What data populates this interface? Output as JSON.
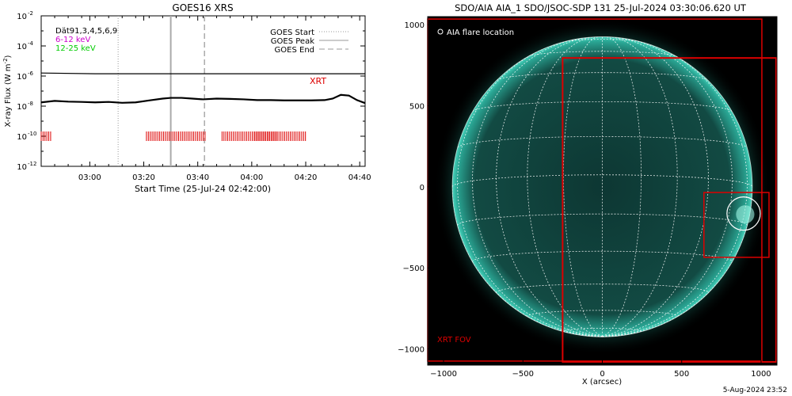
{
  "chart_data": [
    {
      "type": "line",
      "title": "GOES16 XRS",
      "xlabel": "Start Time (25-Jul-24 02:42:00)",
      "ylabel": "X-ray Flux (W m",
      "ylabel_sup": "-2",
      "ylabel_close": ")",
      "x_unit": "minutes",
      "xlim": [
        0,
        120
      ],
      "ylim_log10": [
        -12,
        -2
      ],
      "y_scale": "log",
      "y_ticks": [
        {
          "v": -2,
          "base": "10",
          "exp": "-2"
        },
        {
          "v": -4,
          "base": "10",
          "exp": "-4"
        },
        {
          "v": -6,
          "base": "10",
          "exp": "-6"
        },
        {
          "v": -8,
          "base": "10",
          "exp": "-8"
        },
        {
          "v": -10,
          "base": "10",
          "exp": "-10"
        },
        {
          "v": -12,
          "base": "10",
          "exp": "-12"
        }
      ],
      "x_ticks": [
        {
          "v": 18,
          "label": "03:00"
        },
        {
          "v": 38,
          "label": "03:20"
        },
        {
          "v": 58,
          "label": "03:40"
        },
        {
          "v": 78,
          "label": "04:00"
        },
        {
          "v": 98,
          "label": "04:20"
        },
        {
          "v": 118,
          "label": "04:40"
        }
      ],
      "legend_left": [
        {
          "text": "Dät91,3,4,5,6,9",
          "color": "#000000"
        },
        {
          "text": "6-12 keV",
          "color": "#cc00cc"
        },
        {
          "text": "12-25 keV",
          "color": "#00cc00"
        }
      ],
      "legend_right": [
        {
          "text": "GOES Start",
          "style": "dotted"
        },
        {
          "text": "GOES Peak",
          "style": "solid"
        },
        {
          "text": "GOES End",
          "style": "dashed"
        }
      ],
      "xrt_label": "XRT",
      "markers": {
        "goes_start": 28.5,
        "goes_peak": 48,
        "goes_end": 60.5
      },
      "series": [
        {
          "name": "",
          "color": "#000000",
          "x": [
            0,
            20,
            40,
            60,
            80,
            100,
            120
          ],
          "y_log10": [
            -5.8,
            -5.85,
            -5.85,
            -5.85,
            -5.85,
            -5.85,
            -5.85
          ]
        },
        {
          "name": "",
          "color": "#000000",
          "x": [
            0,
            5,
            10,
            15,
            20,
            25,
            30,
            35,
            40,
            45,
            48,
            52,
            56,
            60,
            65,
            70,
            75,
            80,
            85,
            90,
            95,
            100,
            105,
            108,
            111,
            114,
            117,
            120
          ],
          "y_log10": [
            -7.75,
            -7.65,
            -7.7,
            -7.72,
            -7.75,
            -7.72,
            -7.78,
            -7.75,
            -7.62,
            -7.5,
            -7.45,
            -7.45,
            -7.5,
            -7.55,
            -7.5,
            -7.52,
            -7.55,
            -7.6,
            -7.6,
            -7.62,
            -7.62,
            -7.62,
            -7.6,
            -7.5,
            -7.25,
            -7.3,
            -7.6,
            -7.8
          ]
        }
      ],
      "xrt_segments": [
        [
          0,
          4
        ],
        [
          39,
          61
        ],
        [
          67,
          88
        ],
        [
          79,
          98
        ]
      ]
    },
    {
      "type": "image",
      "title": "SDO/AIA AIA_1 SDO/JSOC-SDP 131 25-Jul-2024 03:30:06.620 UT",
      "xlabel": "X (arcsec)",
      "xlim": [
        -1100,
        1100
      ],
      "ylim": [
        -1100,
        1050
      ],
      "x_ticks": [
        {
          "v": -1000,
          "label": "−1000"
        },
        {
          "v": -500,
          "label": "−500"
        },
        {
          "v": 0,
          "label": "0"
        },
        {
          "v": 500,
          "label": "500"
        },
        {
          "v": 1000,
          "label": "1000"
        }
      ],
      "y_ticks": [
        {
          "v": 1000,
          "label": "1000"
        },
        {
          "v": 500,
          "label": "500"
        },
        {
          "v": 0,
          "label": "0"
        },
        {
          "v": -500,
          "label": "−500"
        },
        {
          "v": -1000,
          "label": "−1000"
        }
      ],
      "legend_text": "AIA flare location",
      "xrt_fov_label": "XRT FOV",
      "solar_radius_arcsec": 945,
      "disk_color": "#0e3a36",
      "limb_color": "#2fbfa8",
      "boxes": [
        {
          "name": "outer-fov",
          "x0": -1100,
          "y0": -1075,
          "x1": 1005,
          "y1": 1035
        },
        {
          "name": "xrt-fov",
          "x0": -250,
          "y0": -1080,
          "x1": 1095,
          "y1": 795
        },
        {
          "name": "flare-region",
          "x0": 640,
          "y0": -435,
          "x1": 1050,
          "y1": -35
        }
      ],
      "flare_location": {
        "x": 890,
        "y": -165,
        "r": 105
      }
    }
  ],
  "footer": "5-Aug-2024 23:52"
}
